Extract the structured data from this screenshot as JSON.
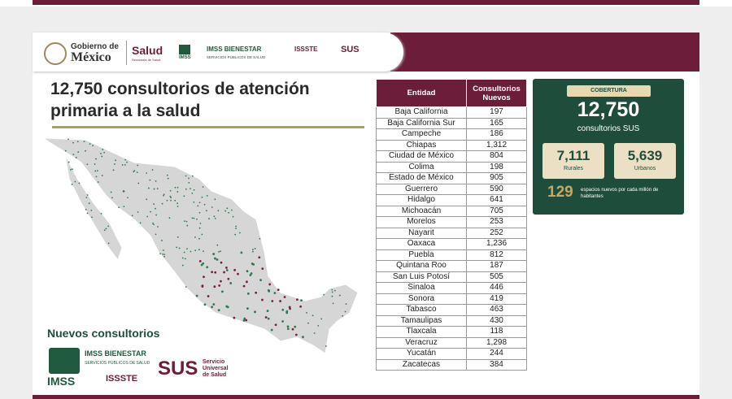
{
  "header": {
    "gobierno": [
      "Gobierno de",
      "México"
    ],
    "salud": "Salud",
    "salud_sub": "Secretaría de Salud",
    "imss": "IMSS",
    "bienestar": "IMSS BIENESTAR",
    "bienestar_sub": "SERVICIOS PÚBLICOS DE SALUD",
    "issste": "ISSSTE",
    "sus": "SUS"
  },
  "title": "12,750 consultorios de atención primaria a la salud",
  "table": {
    "columns": [
      "Entidad",
      "Consultorios Nuevos"
    ],
    "rows": [
      [
        "Baja California",
        "197"
      ],
      [
        "Baja California Sur",
        "165"
      ],
      [
        "Campeche",
        "186"
      ],
      [
        "Chiapas",
        "1,312"
      ],
      [
        "Ciudad de México",
        "804"
      ],
      [
        "Colima",
        "198"
      ],
      [
        "Estado de México",
        "905"
      ],
      [
        "Guerrero",
        "590"
      ],
      [
        "Hidalgo",
        "641"
      ],
      [
        "Michoacán",
        "705"
      ],
      [
        "Morelos",
        "253"
      ],
      [
        "Nayarit",
        "252"
      ],
      [
        "Oaxaca",
        "1,236"
      ],
      [
        "Puebla",
        "812"
      ],
      [
        "Quintana Roo",
        "187"
      ],
      [
        "San Luis Potosí",
        "505"
      ],
      [
        "Sinaloa",
        "446"
      ],
      [
        "Sonora",
        "419"
      ],
      [
        "Tabasco",
        "463"
      ],
      [
        "Tamaulipas",
        "430"
      ],
      [
        "Tlaxcala",
        "118"
      ],
      [
        "Veracruz",
        "1,298"
      ],
      [
        "Yucatán",
        "244"
      ],
      [
        "Zacatecas",
        "384"
      ]
    ]
  },
  "coverage": {
    "label": "COBERTURA",
    "total": "12,750",
    "total_caption": "consultorios SUS",
    "rural": {
      "value": "7,111",
      "label": "Rurales"
    },
    "urban": {
      "value": "5,639",
      "label": "Urbanos"
    },
    "per_million": {
      "value": "129",
      "caption": "espacios nuevos por cada millón de habitantes"
    }
  },
  "footer": {
    "title": "Nuevos consultorios",
    "imss": "IMSS",
    "bienestar": "IMSS BIENESTAR",
    "bienestar_sub": "SERVICIOS PÚBLICOS DE SALUD",
    "issste": "ISSSTE",
    "sus": "SUS",
    "sus_caption": "Servicio Universal de Salud"
  }
}
